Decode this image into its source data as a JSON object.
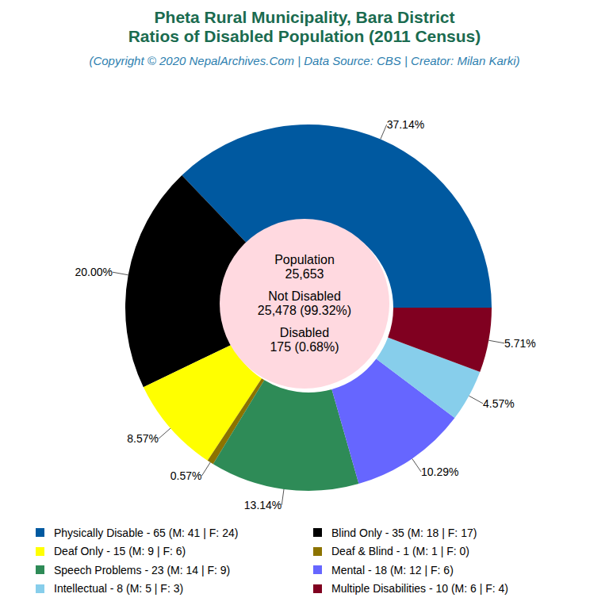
{
  "chart_data": {
    "type": "pie",
    "title": [
      "Pheta Rural Municipality, Bara District",
      "Ratios of Disabled Population (2011 Census)"
    ],
    "subtitle": "(Copyright © 2020 NepalArchives.Com | Data Source: CBS | Creator: Milan Karki)",
    "categories": [
      "Physically Disable - 65 (M: 41 | F: 24)",
      "Blind Only - 35 (M: 18 | F: 17)",
      "Deaf Only - 15 (M: 9 | F: 6)",
      "Deaf & Blind - 1 (M: 1 | F: 0)",
      "Speech Problems - 23 (M: 14 | F: 9)",
      "Mental - 18 (M: 12 | F: 6)",
      "Intellectual - 8 (M: 5 | F: 3)",
      "Multiple Disabilities - 10 (M: 6 | F: 4)"
    ],
    "values": [
      37.14,
      20.0,
      8.57,
      0.57,
      13.14,
      10.29,
      4.57,
      5.71
    ],
    "value_labels": [
      "37.14%",
      "20.00%",
      "8.57%",
      "0.57%",
      "13.14%",
      "10.29%",
      "4.57%",
      "5.71%"
    ],
    "colors": [
      "#0059a0",
      "#000000",
      "#ffff00",
      "#8c7300",
      "#2e8b57",
      "#6666ff",
      "#87ceeb",
      "#800020"
    ],
    "center_text": [
      "Population",
      "25,653",
      "Not Disabled",
      "25,478 (99.32%)",
      "Disabled",
      "175 (0.68%)"
    ],
    "data_labels": true,
    "legend": "bottom"
  }
}
